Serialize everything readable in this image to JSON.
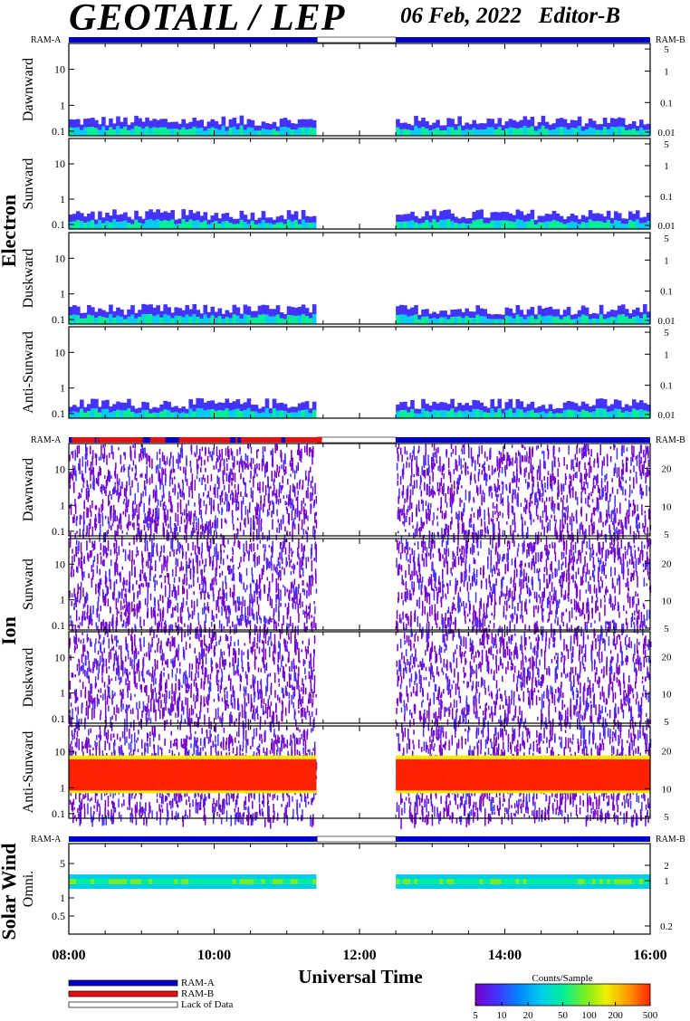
{
  "header": {
    "title": "GEOTAIL / LEP",
    "date": "06 Feb, 2022",
    "editor": "Editor-B"
  },
  "colors": {
    "ram_a": "#0000cc",
    "ram_b": "#e81010",
    "lack_of_data": "#ffffff",
    "colorbar": [
      "#7700cc",
      "#4433ff",
      "#0088ff",
      "#00ccee",
      "#00ee99",
      "#77ee22",
      "#eeee00",
      "#ff9900",
      "#ff2200"
    ]
  },
  "mode_bar_labels": {
    "left": "RAM-A",
    "right": "RAM-B"
  },
  "group_labels": [
    "Electron",
    "Ion",
    "Solar Wind"
  ],
  "x_axis": {
    "title": "Universal Time",
    "range": [
      "08:00",
      "16:00"
    ],
    "tick_labels": [
      "08:00",
      "10:00",
      "12:00",
      "14:00",
      "16:00"
    ]
  },
  "legend": {
    "items": [
      "RAM-A",
      "RAM-B",
      "Lack of Data"
    ]
  },
  "colorbar": {
    "title": "Counts/Sample",
    "tick_labels": [
      "5",
      "10",
      "20",
      "50",
      "100",
      "200",
      "500"
    ],
    "range": [
      5,
      500
    ],
    "scale": "log"
  },
  "chart_data": [
    {
      "type": "heatmap",
      "group": "Electron",
      "ylabel": "Dawnward",
      "y_scale": "log",
      "ylim": [
        0.08,
        40
      ],
      "left_ticks": [
        "10",
        "1",
        "0.1"
      ],
      "right_ticks": [
        "5",
        "1",
        "0.1",
        "0.01"
      ],
      "data_gaps": [
        [
          "11:25",
          "12:30"
        ]
      ],
      "mode": [
        [
          "08:00",
          "11:25",
          "RAM-A"
        ],
        [
          "11:25",
          "12:30",
          "Lack of Data"
        ],
        [
          "12:30",
          "16:00",
          "RAM-A"
        ]
      ]
    },
    {
      "type": "heatmap",
      "group": "Electron",
      "ylabel": "Sunward",
      "y_scale": "log",
      "ylim": [
        0.08,
        40
      ],
      "left_ticks": [
        "10",
        "1",
        "0.1"
      ],
      "right_ticks": [
        "5",
        "1",
        "0.1",
        "0.01"
      ],
      "data_gaps": [
        [
          "11:25",
          "12:30"
        ]
      ]
    },
    {
      "type": "heatmap",
      "group": "Electron",
      "ylabel": "Duskward",
      "y_scale": "log",
      "ylim": [
        0.08,
        40
      ],
      "left_ticks": [
        "10",
        "1",
        "0.1"
      ],
      "right_ticks": [
        "5",
        "1",
        "0.1",
        "0.01"
      ],
      "data_gaps": [
        [
          "11:25",
          "12:30"
        ]
      ]
    },
    {
      "type": "heatmap",
      "group": "Electron",
      "ylabel": "Anti-Sunward",
      "y_scale": "log",
      "ylim": [
        0.08,
        40
      ],
      "left_ticks": [
        "10",
        "1",
        "0.1"
      ],
      "right_ticks": [
        "5",
        "1",
        "0.1",
        "0.01"
      ],
      "data_gaps": [
        [
          "11:25",
          "12:30"
        ]
      ]
    },
    {
      "type": "heatmap",
      "group": "Ion",
      "ylabel": "Dawnward",
      "y_scale": "log",
      "ylim": [
        0.08,
        40
      ],
      "left_ticks": [
        "10",
        "1",
        "0.1"
      ],
      "right_ticks": [
        "20",
        "10",
        "5"
      ],
      "data_gaps": [
        [
          "11:25",
          "12:30"
        ]
      ],
      "mode": [
        [
          "08:00",
          "11:25",
          "RAM-B intermittent"
        ],
        [
          "11:25",
          "12:30",
          "Lack of Data"
        ],
        [
          "12:30",
          "16:00",
          "RAM-A"
        ]
      ]
    },
    {
      "type": "heatmap",
      "group": "Ion",
      "ylabel": "Sunward",
      "y_scale": "log",
      "ylim": [
        0.08,
        40
      ],
      "left_ticks": [
        "10",
        "1",
        "0.1"
      ],
      "right_ticks": [
        "20",
        "10",
        "5"
      ],
      "data_gaps": [
        [
          "11:25",
          "12:30"
        ]
      ]
    },
    {
      "type": "heatmap",
      "group": "Ion",
      "ylabel": "Duskward",
      "y_scale": "log",
      "ylim": [
        0.08,
        40
      ],
      "left_ticks": [
        "10",
        "1",
        "0.1"
      ],
      "right_ticks": [
        "20",
        "10",
        "5"
      ],
      "data_gaps": [
        [
          "11:25",
          "12:30"
        ]
      ]
    },
    {
      "type": "heatmap",
      "group": "Ion",
      "ylabel": "Anti-Sunward",
      "y_scale": "log",
      "ylim": [
        0.08,
        40
      ],
      "left_ticks": [
        "10",
        "1",
        "0.1"
      ],
      "right_ticks": [
        "20",
        "10",
        "5"
      ],
      "data_gaps": [
        [
          "11:25",
          "12:30"
        ]
      ]
    },
    {
      "type": "heatmap",
      "group": "Solar Wind",
      "ylabel": "Omni.",
      "y_scale": "log",
      "ylim": [
        0.15,
        8
      ],
      "left_ticks": [
        "5",
        "1",
        "0.5"
      ],
      "right_ticks": [
        "2",
        "1",
        "0.2"
      ],
      "data_gaps": [
        [
          "11:25",
          "12:30"
        ]
      ],
      "mode": [
        [
          "08:00",
          "11:25",
          "RAM-A"
        ],
        [
          "11:25",
          "12:30",
          "Lack of Data"
        ],
        [
          "12:30",
          "16:00",
          "RAM-A"
        ]
      ]
    }
  ]
}
